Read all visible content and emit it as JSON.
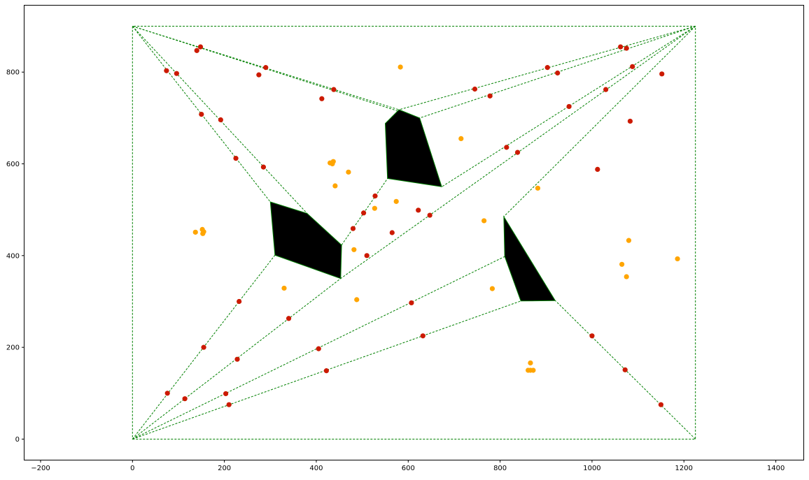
{
  "chart_data": {
    "type": "scatter",
    "title": "",
    "xlabel": "",
    "ylabel": "",
    "xlim": [
      -235,
      1460
    ],
    "ylim": [
      -45,
      945
    ],
    "grid": false,
    "x_ticks": [
      -200,
      0,
      200,
      400,
      600,
      800,
      1000,
      1200,
      1400
    ],
    "y_ticks": [
      0,
      200,
      400,
      600,
      800
    ],
    "x_tick_labels": [
      "−200",
      "0",
      "200",
      "400",
      "600",
      "800",
      "1000",
      "1200",
      "1400"
    ],
    "y_tick_labels": [
      "0",
      "200",
      "400",
      "600",
      "800"
    ],
    "colors": {
      "edges": "#008000",
      "obstacles": "#000000",
      "red_points": "#cc1a00",
      "orange_points": "#ffa500"
    },
    "boundary": [
      [
        0,
        0
      ],
      [
        1225,
        0
      ],
      [
        1225,
        900
      ],
      [
        0,
        900
      ]
    ],
    "obstacles": [
      [
        [
          300,
          517
        ],
        [
          380,
          492
        ],
        [
          455,
          423
        ],
        [
          453,
          350
        ],
        [
          310,
          401
        ]
      ],
      [
        [
          550,
          688
        ],
        [
          580,
          718
        ],
        [
          625,
          700
        ],
        [
          673,
          550
        ],
        [
          555,
          568
        ]
      ],
      [
        [
          808,
          485
        ],
        [
          920,
          302
        ],
        [
          845,
          301
        ],
        [
          810,
          398
        ]
      ]
    ],
    "edges": [
      [
        [
          0,
          900
        ],
        [
          580,
          718
        ]
      ],
      [
        [
          0,
          900
        ],
        [
          625,
          700
        ]
      ],
      [
        [
          0,
          900
        ],
        [
          300,
          517
        ]
      ],
      [
        [
          0,
          900
        ],
        [
          380,
          492
        ]
      ],
      [
        [
          1225,
          900
        ],
        [
          580,
          718
        ]
      ],
      [
        [
          1225,
          900
        ],
        [
          625,
          700
        ]
      ],
      [
        [
          1225,
          900
        ],
        [
          673,
          550
        ]
      ],
      [
        [
          1225,
          900
        ],
        [
          453,
          350
        ]
      ],
      [
        [
          1225,
          900
        ],
        [
          808,
          485
        ]
      ],
      [
        [
          0,
          0
        ],
        [
          310,
          401
        ]
      ],
      [
        [
          0,
          0
        ],
        [
          453,
          350
        ]
      ],
      [
        [
          0,
          0
        ],
        [
          810,
          398
        ]
      ],
      [
        [
          0,
          0
        ],
        [
          845,
          301
        ]
      ],
      [
        [
          1225,
          0
        ],
        [
          920,
          302
        ]
      ],
      [
        [
          455,
          423
        ],
        [
          555,
          568
        ]
      ]
    ],
    "red_points": [
      [
        148,
        855
      ],
      [
        140,
        847
      ],
      [
        74,
        803
      ],
      [
        96,
        797
      ],
      [
        290,
        810
      ],
      [
        275,
        794
      ],
      [
        438,
        762
      ],
      [
        412,
        742
      ],
      [
        150,
        708
      ],
      [
        192,
        696
      ],
      [
        225,
        612
      ],
      [
        285,
        593
      ],
      [
        1062,
        855
      ],
      [
        1075,
        852
      ],
      [
        1088,
        812
      ],
      [
        1152,
        796
      ],
      [
        903,
        810
      ],
      [
        925,
        798
      ],
      [
        745,
        763
      ],
      [
        778,
        748
      ],
      [
        1030,
        762
      ],
      [
        950,
        725
      ],
      [
        1083,
        693
      ],
      [
        814,
        636
      ],
      [
        838,
        625
      ],
      [
        1012,
        588
      ],
      [
        528,
        530
      ],
      [
        503,
        493
      ],
      [
        480,
        459
      ],
      [
        510,
        400
      ],
      [
        622,
        499
      ],
      [
        647,
        488
      ],
      [
        565,
        450
      ],
      [
        232,
        300
      ],
      [
        155,
        200
      ],
      [
        76,
        100
      ],
      [
        114,
        88
      ],
      [
        340,
        263
      ],
      [
        228,
        174
      ],
      [
        203,
        99
      ],
      [
        210,
        75
      ],
      [
        405,
        197
      ],
      [
        422,
        149
      ],
      [
        607,
        297
      ],
      [
        632,
        225
      ],
      [
        1000,
        225
      ],
      [
        1072,
        151
      ],
      [
        1150,
        75
      ]
    ],
    "orange_points": [
      [
        583,
        811
      ],
      [
        715,
        655
      ],
      [
        430,
        602
      ],
      [
        437,
        605
      ],
      [
        435,
        600
      ],
      [
        470,
        582
      ],
      [
        441,
        552
      ],
      [
        574,
        518
      ],
      [
        527,
        503
      ],
      [
        882,
        547
      ],
      [
        765,
        476
      ],
      [
        137,
        451
      ],
      [
        152,
        457
      ],
      [
        153,
        448
      ],
      [
        155,
        452
      ],
      [
        482,
        413
      ],
      [
        330,
        329
      ],
      [
        488,
        304
      ],
      [
        783,
        328
      ],
      [
        1080,
        433
      ],
      [
        1065,
        381
      ],
      [
        1075,
        354
      ],
      [
        1186,
        393
      ],
      [
        866,
        166
      ],
      [
        861,
        150
      ],
      [
        866,
        150
      ],
      [
        872,
        150
      ]
    ]
  }
}
